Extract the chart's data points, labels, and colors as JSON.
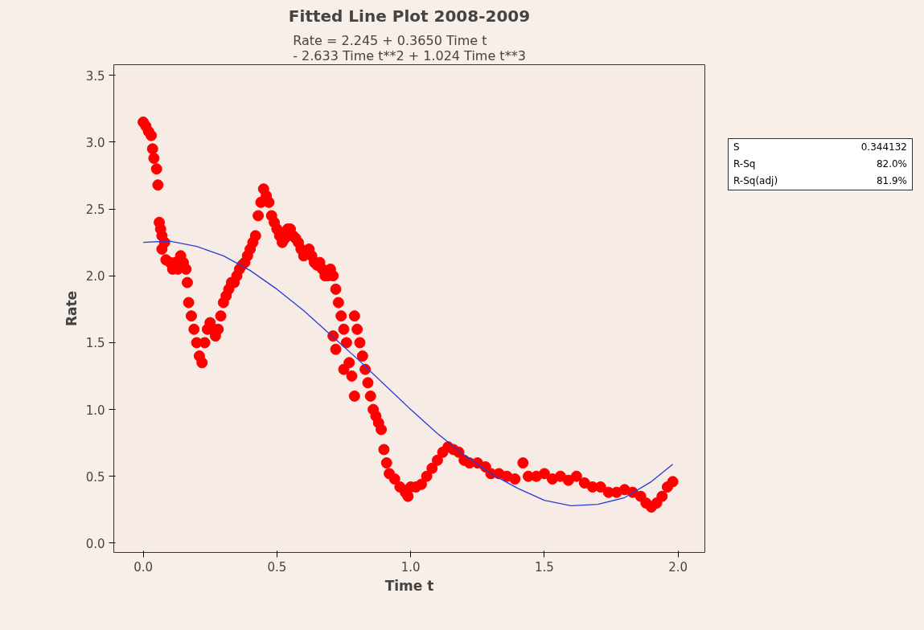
{
  "chart_data": {
    "type": "scatter",
    "title": "Fitted Line Plot 2008-2009",
    "subtitle": "Rate =  2.245 + 0.3650 Time t\n- 2.633 Time t**2 + 1.024 Time t**3",
    "xlabel": "Time t",
    "ylabel": "Rate",
    "xlim": [
      -0.11,
      2.1
    ],
    "ylim": [
      -0.07,
      3.58
    ],
    "xticks": [
      {
        "value": 0,
        "label": "0.0"
      },
      0.5,
      {
        "value": 1,
        "label": "1.0"
      },
      1.5,
      {
        "value": 2,
        "label": "2.0"
      }
    ],
    "yticks": [
      {
        "value": 0,
        "label": "0.0"
      },
      0.5,
      {
        "value": 1,
        "label": "1.0"
      },
      1.5,
      {
        "value": 2,
        "label": "2.0"
      },
      2.5,
      {
        "value": 3,
        "label": "3.0"
      },
      3.5
    ],
    "grid": false,
    "annotations": [
      "S 0.344132",
      "R-Sq 82.0%",
      "R-Sq(adj) 81.9%"
    ],
    "series": [
      {
        "marker": "circle",
        "color": "#ff0000",
        "x": [
          0.0,
          0.01,
          0.02,
          0.03,
          0.035,
          0.04,
          0.05,
          0.055,
          0.06,
          0.065,
          0.07,
          0.08,
          0.07,
          0.085,
          0.1,
          0.11,
          0.12,
          0.13,
          0.14,
          0.15,
          0.16,
          0.165,
          0.17,
          0.18,
          0.19,
          0.2,
          0.21,
          0.22,
          0.23,
          0.24,
          0.25,
          0.26,
          0.27,
          0.28,
          0.29,
          0.3,
          0.31,
          0.32,
          0.33,
          0.34,
          0.35,
          0.36,
          0.37,
          0.38,
          0.39,
          0.4,
          0.41,
          0.42,
          0.43,
          0.44,
          0.45,
          0.46,
          0.47,
          0.48,
          0.49,
          0.5,
          0.51,
          0.52,
          0.53,
          0.54,
          0.55,
          0.56,
          0.57,
          0.58,
          0.59,
          0.6,
          0.62,
          0.63,
          0.64,
          0.65,
          0.66,
          0.67,
          0.68,
          0.69,
          0.7,
          0.71,
          0.72,
          0.73,
          0.74,
          0.75,
          0.76,
          0.77,
          0.78,
          0.79,
          0.71,
          0.72,
          0.75,
          0.79,
          0.8,
          0.81,
          0.82,
          0.83,
          0.84,
          0.85,
          0.86,
          0.87,
          0.88,
          0.89,
          0.9,
          0.91,
          0.92,
          0.94,
          0.96,
          0.98,
          0.99,
          1.0,
          1.02,
          1.04,
          1.06,
          1.08,
          1.1,
          1.12,
          1.14,
          1.16,
          1.18,
          1.2,
          1.22,
          1.25,
          1.28,
          1.3,
          1.33,
          1.36,
          1.39,
          1.42,
          1.44,
          1.47,
          1.5,
          1.53,
          1.56,
          1.59,
          1.62,
          1.65,
          1.68,
          1.71,
          1.74,
          1.77,
          1.8,
          1.83,
          1.86,
          1.88,
          1.9,
          1.92,
          1.94,
          1.96,
          1.98
        ],
        "values": [
          3.15,
          3.12,
          3.08,
          3.05,
          2.95,
          2.88,
          2.8,
          2.68,
          2.4,
          2.35,
          2.3,
          2.25,
          2.2,
          2.12,
          2.1,
          2.05,
          2.1,
          2.05,
          2.15,
          2.1,
          2.05,
          1.95,
          1.8,
          1.7,
          1.6,
          1.5,
          1.4,
          1.35,
          1.5,
          1.6,
          1.65,
          1.6,
          1.55,
          1.6,
          1.7,
          1.8,
          1.85,
          1.9,
          1.95,
          1.95,
          2.0,
          2.05,
          2.08,
          2.1,
          2.15,
          2.2,
          2.25,
          2.3,
          2.45,
          2.55,
          2.65,
          2.6,
          2.55,
          2.45,
          2.4,
          2.35,
          2.3,
          2.25,
          2.28,
          2.35,
          2.35,
          2.3,
          2.28,
          2.25,
          2.2,
          2.15,
          2.2,
          2.15,
          2.1,
          2.08,
          2.1,
          2.05,
          2.0,
          2.0,
          2.05,
          2.0,
          1.9,
          1.8,
          1.7,
          1.6,
          1.5,
          1.35,
          1.25,
          1.1,
          1.55,
          1.45,
          1.3,
          1.7,
          1.6,
          1.5,
          1.4,
          1.3,
          1.2,
          1.1,
          1.0,
          0.95,
          0.9,
          0.85,
          0.7,
          0.6,
          0.52,
          0.48,
          0.42,
          0.38,
          0.35,
          0.42,
          0.42,
          0.44,
          0.5,
          0.56,
          0.62,
          0.68,
          0.72,
          0.7,
          0.68,
          0.62,
          0.6,
          0.6,
          0.57,
          0.52,
          0.52,
          0.5,
          0.48,
          0.6,
          0.5,
          0.5,
          0.52,
          0.48,
          0.5,
          0.47,
          0.5,
          0.45,
          0.42,
          0.42,
          0.38,
          0.38,
          0.4,
          0.38,
          0.35,
          0.3,
          0.27,
          0.3,
          0.35,
          0.42,
          0.46
        ]
      },
      {
        "type": "line",
        "marker": "none",
        "color": "#2a3bd6",
        "x": [
          0,
          0.1,
          0.2,
          0.3,
          0.4,
          0.5,
          0.6,
          0.7,
          0.8,
          0.9,
          1.0,
          1.1,
          1.2,
          1.3,
          1.4,
          1.5,
          1.6,
          1.7,
          1.8,
          1.9,
          1.98
        ],
        "values": [
          2.25,
          2.26,
          2.22,
          2.15,
          2.04,
          1.9,
          1.74,
          1.56,
          1.38,
          1.19,
          1.0,
          0.82,
          0.66,
          0.52,
          0.41,
          0.32,
          0.28,
          0.29,
          0.34,
          0.46,
          0.59
        ]
      }
    ]
  }
}
